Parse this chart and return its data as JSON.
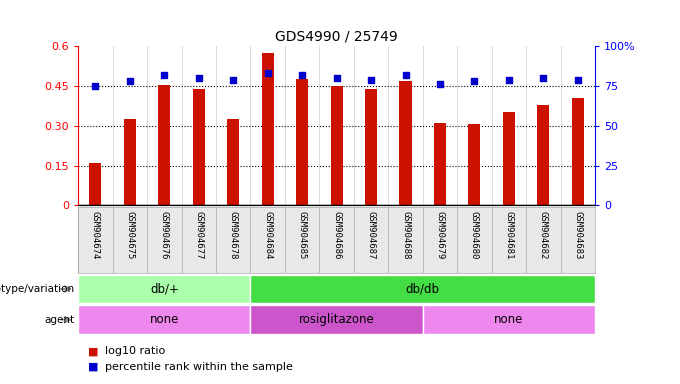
{
  "title": "GDS4990 / 25749",
  "samples": [
    "GSM904674",
    "GSM904675",
    "GSM904676",
    "GSM904677",
    "GSM904678",
    "GSM904684",
    "GSM904685",
    "GSM904686",
    "GSM904687",
    "GSM904688",
    "GSM904679",
    "GSM904680",
    "GSM904681",
    "GSM904682",
    "GSM904683"
  ],
  "log10_ratio": [
    0.16,
    0.325,
    0.452,
    0.44,
    0.325,
    0.575,
    0.475,
    0.45,
    0.44,
    0.47,
    0.31,
    0.305,
    0.35,
    0.38,
    0.405
  ],
  "percentile_rank": [
    75,
    78,
    82,
    80,
    79,
    83,
    82,
    80,
    79,
    82,
    76,
    78,
    79,
    80,
    79
  ],
  "bar_color": "#cc1100",
  "dot_color": "#0000cc",
  "ylim_left": [
    0,
    0.6
  ],
  "ylim_right": [
    0,
    100
  ],
  "yticks_left": [
    0,
    0.15,
    0.3,
    0.45,
    0.6
  ],
  "yticks_right": [
    0,
    25,
    50,
    75,
    100
  ],
  "ytick_labels_left": [
    "0",
    "0.15",
    "0.30",
    "0.45",
    "0.6"
  ],
  "ytick_labels_right": [
    "0",
    "25",
    "50",
    "75",
    "100%"
  ],
  "hlines": [
    0.15,
    0.3,
    0.45
  ],
  "genotype_groups": [
    {
      "label": "db/+",
      "start": 0,
      "end": 5,
      "color": "#aaffaa"
    },
    {
      "label": "db/db",
      "start": 5,
      "end": 15,
      "color": "#44dd44"
    }
  ],
  "agent_groups": [
    {
      "label": "none",
      "start": 0,
      "end": 5,
      "color": "#ee88ee"
    },
    {
      "label": "rosiglitazone",
      "start": 5,
      "end": 10,
      "color": "#cc55cc"
    },
    {
      "label": "none",
      "start": 10,
      "end": 15,
      "color": "#ee88ee"
    }
  ],
  "legend_red_label": "log10 ratio",
  "legend_blue_label": "percentile rank within the sample",
  "background_color": "#ffffff"
}
